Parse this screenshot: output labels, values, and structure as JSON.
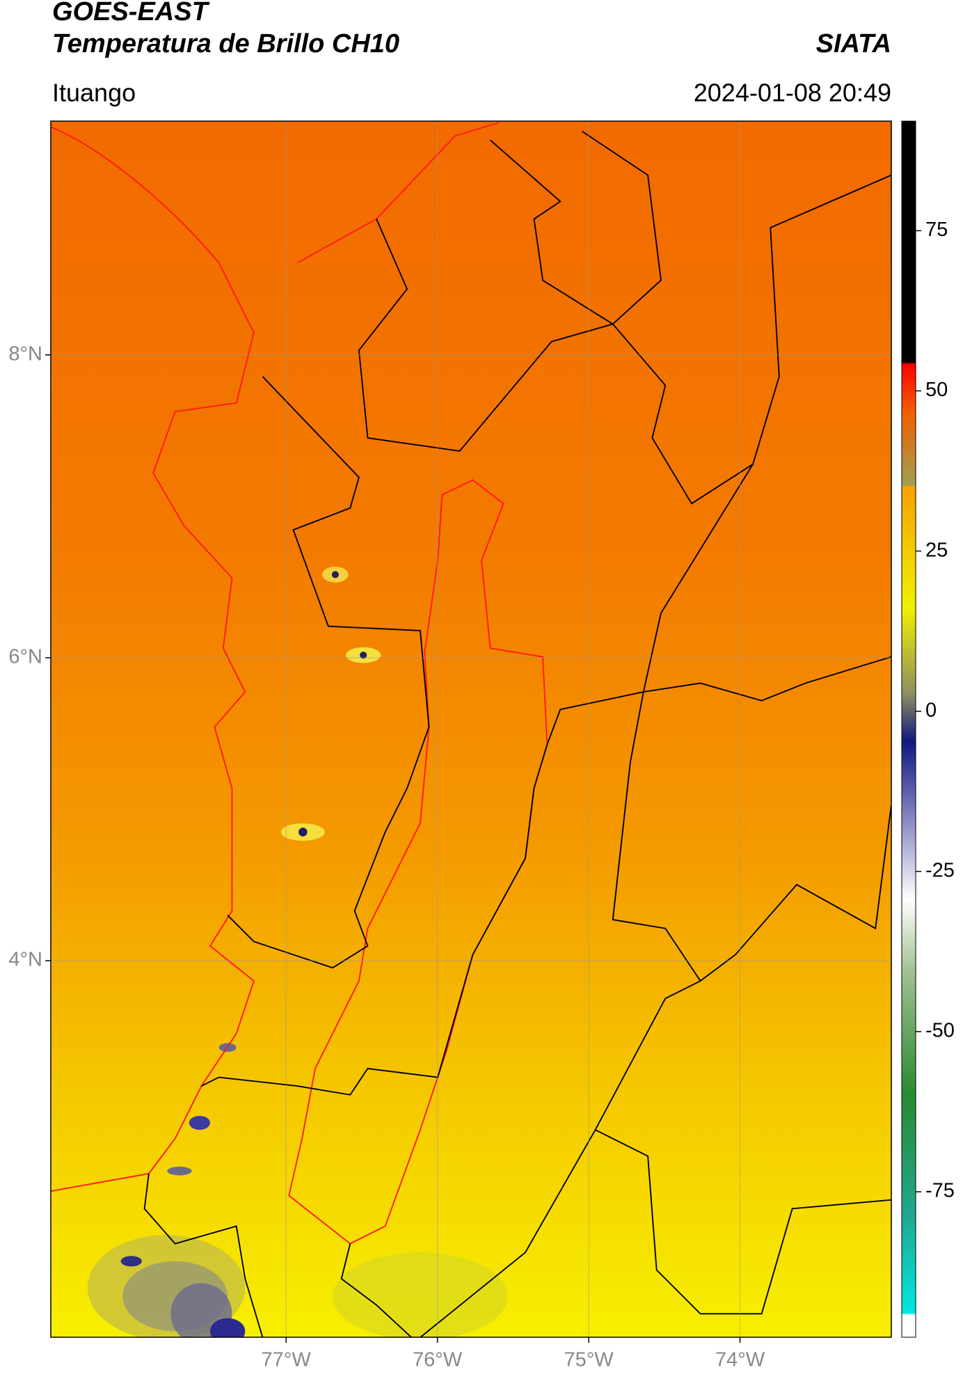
{
  "header": {
    "title": "GOES-EAST",
    "subtitle": "Temperatura de Brillo CH10",
    "source": "SIATA",
    "location": "Ituango",
    "datetime": "2024-01-08 20:49"
  },
  "map": {
    "xlim": [
      -78.555,
      -73.0
    ],
    "ylim": [
      1.514,
      9.543
    ],
    "xticks": [
      {
        "value": -77,
        "label": "77°W"
      },
      {
        "value": -76,
        "label": "76°W"
      },
      {
        "value": -75,
        "label": "75°W"
      },
      {
        "value": -74,
        "label": "74°W"
      }
    ],
    "yticks": [
      {
        "value": 8,
        "label": "8°N"
      },
      {
        "value": 6,
        "label": "6°N"
      },
      {
        "value": 4,
        "label": "4°N"
      }
    ],
    "grid": true
  },
  "colorbar": {
    "lim": [
      -97.7,
      92.1
    ],
    "ticks": [
      75,
      50,
      25,
      0,
      -25,
      -50,
      -75
    ]
  }
}
